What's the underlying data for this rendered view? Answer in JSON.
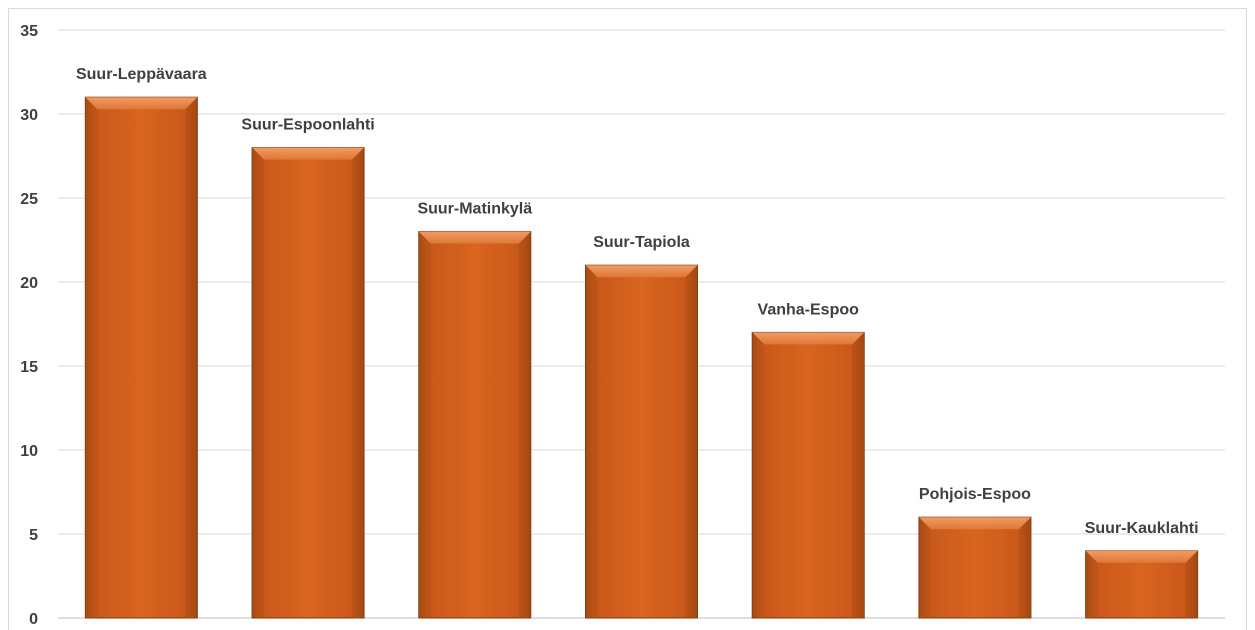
{
  "chart_data": {
    "type": "bar",
    "title": "",
    "xlabel": "",
    "ylabel": "",
    "ylim": [
      0,
      35
    ],
    "yticks": [
      0,
      5,
      10,
      15,
      20,
      25,
      30,
      35
    ],
    "grid": true,
    "categories": [
      "Suur-Leppävaara",
      "Suur-Espoonlahti",
      "Suur-Matinkylä",
      "Suur-Tapiola",
      "Vanha-Espoo",
      "Pohjois-Espoo",
      "Suur-Kauklahti"
    ],
    "values": [
      31,
      28,
      23,
      21,
      17,
      6,
      4
    ],
    "data_labels": "category-above-bar",
    "colors": {
      "bar_fill": "#D2611E",
      "bar_light": "#E8874A",
      "bar_dark": "#A84C14",
      "bar_edge": "#7A3A10",
      "gridline": "#d9d9d9",
      "axis": "#bfbfbf",
      "text": "#404040"
    }
  }
}
